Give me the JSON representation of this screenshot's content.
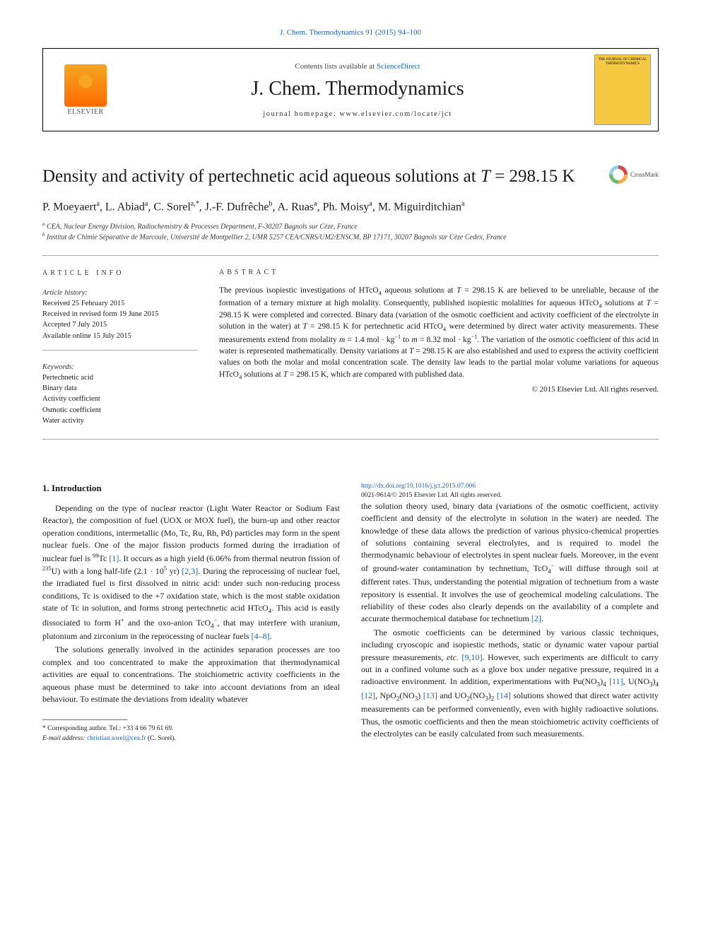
{
  "journalRef": "J. Chem. Thermodynamics 91 (2015) 94–100",
  "header": {
    "contentsPrefix": "Contents lists available at ",
    "scienceDirect": "ScienceDirect",
    "journalName": "J. Chem. Thermodynamics",
    "homepagePrefix": "journal homepage: ",
    "homepageUrl": "www.elsevier.com/locate/jct",
    "elsevierLabel": "ELSEVIER",
    "coverText": "THE JOURNAL OF CHEMICAL THERMODYNAMICS"
  },
  "article": {
    "title_html": "Density and activity of pertechnetic acid aqueous solutions at <i>T</i> = 298.15 K",
    "crossmarkLabel": "CrossMark",
    "authors_html": "P. Moeyaert<sup>a</sup>, L. Abiad<sup>a</sup>, C. Sorel<sup>a,*</sup>, J.-F. Dufrêche<sup>b</sup>, A. Ruas<sup>a</sup>, Ph. Moisy<sup>a</sup>, M. Miguirditchian<sup>a</sup>",
    "affiliations": {
      "a": "CEA, Nuclear Energy Division, Radiochemistry & Processes Department, F-30207 Bagnols sur Cèze, France",
      "b": "Institut de Chimie Séparative de Marcoule, Université de Montpellier 2, UMR 5257 CEA/CNRS/UM2/ENSCM, BP 17171, 30207 Bagnols sur Cèze Cedex, France"
    }
  },
  "articleInfo": {
    "label": "ARTICLE INFO",
    "historyHead": "Article history:",
    "received": "Received 25 February 2015",
    "revised": "Received in revised form 19 June 2015",
    "accepted": "Accepted 7 July 2015",
    "online": "Available online 15 July 2015",
    "keywordsHead": "Keywords:",
    "keywords": [
      "Pertechnetic acid",
      "Binary data",
      "Activity coefficient",
      "Osmotic coefficient",
      "Water activity"
    ]
  },
  "abstract": {
    "label": "ABSTRACT",
    "text_html": "The previous isopiestic investigations of HTcO<sub>4</sub> aqueous solutions at <i>T</i> = 298.15 K are believed to be unreliable, because of the formation of a ternary mixture at high molality. Consequently, published isopiestic molalities for aqueous HTcO<sub>4</sub> solutions at <i>T</i> = 298.15 K were completed and corrected. Binary data (variation of the osmotic coefficient and activity coefficient of the electrolyte in solution in the water) at <i>T</i> = 298.15 K for pertechnetic acid HTcO<sub>4</sub> were determined by direct water activity measurements. These measurements extend from molality <i>m</i> = 1.4 mol · kg<sup>−1</sup> to <i>m</i> = 8.32 mol · kg<sup>−1</sup>. The variation of the osmotic coefficient of this acid in water is represented mathematically. Density variations at <i>T</i> = 298.15 K are also established and used to express the activity coefficient values on both the molar and molal concentration scale. The density law leads to the partial molar volume variations for aqueous HTcO<sub>4</sub> solutions at <i>T</i> = 298.15 K, which are compared with published data.",
    "copyright": "© 2015 Elsevier Ltd. All rights reserved."
  },
  "body": {
    "introHeading": "1. Introduction",
    "p1_html": "Depending on the type of nuclear reactor (Light Water Reactor or Sodium Fast Reactor), the composition of fuel (UOX or MOX fuel), the burn-up and other reactor operation conditions, intermetallic (Mo, Tc, Ru, Rh, Pd) particles may form in the spent nuclear fuels. One of the major fission products formed during the irradiation of nuclear fuel is <sup>99</sup>Tc <span class=\"ref\">[1]</span>. It occurs as a high yield (6.06% from thermal neutron fission of <sup>235</sup>U) with a long half-life (2.1 · 10<sup>5</sup> yr) <span class=\"ref\">[2,3]</span>. During the reprocessing of nuclear fuel, the irradiated fuel is first dissolved in nitric acid: under such non-reducing process conditions, Tc is oxidised to the +7 oxidation state, which is the most stable oxidation state of Tc in solution, and forms strong pertechnetic acid HTcO<sub>4</sub>. This acid is easily dissociated to form H<sup>+</sup> and the oxo-anion TcO<sub>4</sub><sup>−</sup>, that may interfere with uranium, plutonium and zirconium in the reprocessing of nuclear fuels <span class=\"ref\">[4–8]</span>.",
    "p2_html": "The solutions generally involved in the actinides separation processes are too complex and too concentrated to make the approximation that thermodynamical activities are equal to concentrations. The stoichiometric activity coefficients in the aqueous phase must be determined to take into account deviations from an ideal behaviour. To estimate the deviations from ideality whatever",
    "p3_html": "the solution theory used, binary data (variations of the osmotic coefficient, activity coefficient and density of the electrolyte in solution in the water) are needed. The knowledge of these data allows the prediction of various physico-chemical properties of solutions containing several electrolytes, and is required to model the thermodynamic behaviour of electrolytes in spent nuclear fuels. Moreover, in the event of ground-water contamination by technetium, TcO<sub>4</sub><sup>−</sup> will diffuse through soil at different rates. Thus, understanding the potential migration of technetium from a waste repository is essential. It involves the use of geochemical modeling calculations. The reliability of these codes also clearly depends on the availability of a complete and accurate thermochemical database for technetium <span class=\"ref\">[2]</span>.",
    "p4_html": "The osmotic coefficients can be determined by various classic techniques, including cryoscopic and isopiestic methods, static or dynamic water vapour partial pressure measurements, <i>etc.</i> <span class=\"ref\">[9,10]</span>. However, such experiments are difficult to carry out in a confined volume such as a glove box under negative pressure, required in a radioactive environment. In addition, experimentations with Pu(NO<sub>3</sub>)<sub>4</sub> <span class=\"ref\">[11]</span>, U(NO<sub>3</sub>)<sub>4</sub> <span class=\"ref\">[12]</span>, NpO<sub>2</sub>(NO<sub>3</sub>) <span class=\"ref\">[13]</span> and UO<sub>2</sub>(NO<sub>3</sub>)<sub>2</sub> <span class=\"ref\">[14]</span> solutions showed that direct water activity measurements can be performed conveniently, even with highly radioactive solutions. Thus, the osmotic coefficients and then the mean stoichiometric activity coefficients of the electrolytes can be easily calculated from such measurements."
  },
  "footnotes": {
    "corresponding": "* Corresponding author. Tel.: +33 4 66 79 61 69.",
    "emailLabel": "E-mail address: ",
    "email": "christian.sorel@cea.fr",
    "emailSuffix": " (C. Sorel)."
  },
  "doi": {
    "url": "http://dx.doi.org/10.1016/j.jct.2015.07.006",
    "issnLine": "0021-9614/© 2015 Elsevier Ltd. All rights reserved."
  },
  "colors": {
    "linkBlue": "#2164b0",
    "textGray": "#333333",
    "coverYellow": "#f5c842"
  }
}
